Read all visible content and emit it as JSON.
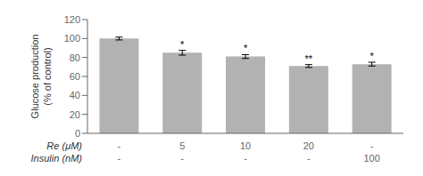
{
  "chart_data": {
    "type": "bar",
    "ylabel": "Glucose production\n(% of control)",
    "categories": [
      [
        "-",
        "-"
      ],
      [
        "5",
        "-"
      ],
      [
        "10",
        "-"
      ],
      [
        "20",
        "-"
      ],
      [
        "-",
        "100"
      ]
    ],
    "category_rows": [
      "Re (μM)",
      "Insulin (nM)"
    ],
    "values": [
      100,
      85,
      81,
      71,
      73
    ],
    "errors": [
      1.5,
      2.5,
      2.0,
      1.5,
      2.0
    ],
    "significance": [
      null,
      "*",
      "*",
      "**",
      "*"
    ],
    "color": "#b2b2b2",
    "ylim": [
      0,
      120
    ],
    "yticks": [
      0,
      20,
      40,
      60,
      80,
      100,
      120
    ],
    "grid": false
  }
}
